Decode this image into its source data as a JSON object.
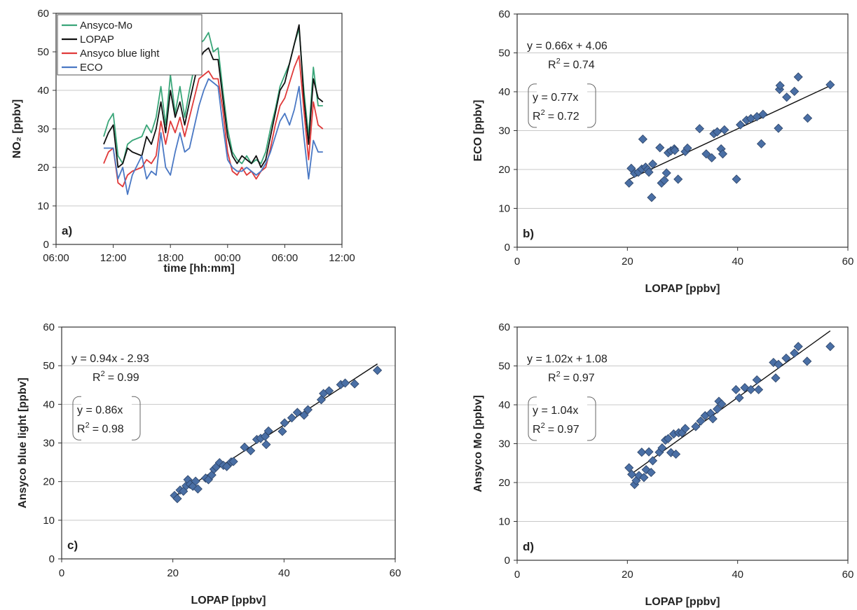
{
  "chart_data": [
    {
      "type": "line",
      "panel_label": "a)",
      "xlabel": "time [hh:mm]",
      "ylabel": "NO₂ [ppbv]",
      "x_ticks": [
        "06:00",
        "12:00",
        "18:00",
        "00:00",
        "06:00",
        "12:00"
      ],
      "xlim": [
        "06:00",
        "12:00 (next day)"
      ],
      "ylim": [
        0,
        60
      ],
      "y_ticks": [
        0,
        10,
        20,
        30,
        40,
        50,
        60
      ],
      "grid": "horizontal",
      "legend_position": "top-left",
      "x_hours": [
        11,
        11.5,
        12,
        12.5,
        13,
        13.5,
        14,
        15,
        15.5,
        16,
        16.5,
        17,
        17.5,
        18,
        18.5,
        19,
        19.5,
        20,
        21,
        21.5,
        22,
        22.5,
        23,
        23.5,
        24,
        24.5,
        25,
        25.5,
        26,
        26.5,
        27,
        27.5,
        28,
        28.5,
        29,
        29.5,
        30,
        30.5,
        31,
        31.5,
        32,
        32.5,
        33,
        33.5,
        34
      ],
      "series": [
        {
          "name": "Ansyco-Mo",
          "color": "#3aa679",
          "values": [
            28,
            32,
            34,
            23,
            21,
            26,
            27,
            28,
            31,
            29,
            33,
            41,
            31,
            44,
            34,
            41,
            33,
            40,
            52,
            53,
            55,
            50,
            51,
            40,
            30,
            24,
            22,
            21,
            23,
            21,
            22,
            21,
            24,
            30,
            35,
            41,
            44,
            47,
            52,
            56,
            40,
            28,
            46,
            36,
            36
          ]
        },
        {
          "name": "LOPAP",
          "color": "#111111",
          "values": [
            26,
            29,
            31,
            20,
            21,
            25,
            24,
            23,
            28,
            26,
            30,
            37,
            29,
            40,
            33,
            37,
            31,
            37,
            48,
            50,
            51,
            48,
            48,
            38,
            28,
            23,
            21,
            23,
            22,
            21,
            23,
            20,
            22,
            28,
            34,
            40,
            42,
            47,
            52,
            57,
            38,
            26,
            43,
            38,
            37
          ]
        },
        {
          "name": "Ansyco blue light",
          "color": "#e03a3a",
          "values": [
            21,
            24,
            25,
            16,
            15,
            18,
            19,
            20,
            22,
            21,
            23,
            32,
            26,
            32,
            29,
            33,
            28,
            33,
            43,
            44,
            45,
            43,
            43,
            35,
            24,
            19,
            18,
            20,
            18,
            19,
            17,
            19,
            20,
            25,
            31,
            36,
            38,
            42,
            46,
            49,
            35,
            22,
            37,
            31,
            30
          ]
        },
        {
          "name": "ECO",
          "color": "#4a78c4",
          "values": [
            25,
            25,
            25,
            17,
            20,
            13,
            18,
            23,
            17,
            19,
            18,
            29,
            20,
            18,
            24,
            29,
            24,
            25,
            36,
            40,
            43,
            42,
            41,
            31,
            22,
            20,
            19,
            19,
            20,
            19,
            18,
            19,
            21,
            24,
            28,
            32,
            34,
            31,
            35,
            41,
            28,
            17,
            27,
            24,
            24
          ]
        }
      ]
    },
    {
      "type": "scatter",
      "panel_label": "b)",
      "xlabel": "LOPAP [ppbv]",
      "ylabel": "ECO [ppbv]",
      "xlim": [
        0,
        60
      ],
      "ylim": [
        0,
        60
      ],
      "x_ticks": [
        0,
        20,
        40,
        60
      ],
      "y_ticks": [
        0,
        10,
        20,
        30,
        40,
        50,
        60
      ],
      "grid": "horizontal",
      "marker_color": "#4a6fa5",
      "regression": {
        "equation": "y = 0.66x + 4.06",
        "r2": "= 0.74",
        "slope": 0.66,
        "intercept": 4.06
      },
      "origin_fit": {
        "equation": "y = 0.77x",
        "r2": "= 0.72"
      },
      "points": [
        [
          20.3,
          16.5
        ],
        [
          20.7,
          20.3
        ],
        [
          21.3,
          19.0
        ],
        [
          22.0,
          19.3
        ],
        [
          22.6,
          20.1
        ],
        [
          22.8,
          27.8
        ],
        [
          23.3,
          20.6
        ],
        [
          23.7,
          20.0
        ],
        [
          23.9,
          19.3
        ],
        [
          24.4,
          12.8
        ],
        [
          24.6,
          21.4
        ],
        [
          25.9,
          25.6
        ],
        [
          26.2,
          16.5
        ],
        [
          26.7,
          17.2
        ],
        [
          27.1,
          19.1
        ],
        [
          27.4,
          24.3
        ],
        [
          27.9,
          24.8
        ],
        [
          28.5,
          25.3
        ],
        [
          28.6,
          24.9
        ],
        [
          29.2,
          17.5
        ],
        [
          30.5,
          24.6
        ],
        [
          30.9,
          25.5
        ],
        [
          33.1,
          30.5
        ],
        [
          34.3,
          24.0
        ],
        [
          35.3,
          23.0
        ],
        [
          35.7,
          29.2
        ],
        [
          36.3,
          29.7
        ],
        [
          37.0,
          25.3
        ],
        [
          37.3,
          24.0
        ],
        [
          37.6,
          30.2
        ],
        [
          39.8,
          17.5
        ],
        [
          40.5,
          31.5
        ],
        [
          41.6,
          32.7
        ],
        [
          42.4,
          33.1
        ],
        [
          43.5,
          33.6
        ],
        [
          44.3,
          26.6
        ],
        [
          44.6,
          34.2
        ],
        [
          47.4,
          30.6
        ],
        [
          47.6,
          40.6
        ],
        [
          47.7,
          41.6
        ],
        [
          48.9,
          38.6
        ],
        [
          50.3,
          40.1
        ],
        [
          51.0,
          43.8
        ],
        [
          52.7,
          33.2
        ],
        [
          56.8,
          41.8
        ]
      ]
    },
    {
      "type": "scatter",
      "panel_label": "c)",
      "xlabel": "LOPAP [ppbv]",
      "ylabel": "Ansyco blue light [ppbv]",
      "xlim": [
        0,
        60
      ],
      "ylim": [
        0,
        60
      ],
      "x_ticks": [
        0,
        20,
        40,
        60
      ],
      "y_ticks": [
        0,
        10,
        20,
        30,
        40,
        50,
        60
      ],
      "grid": "horizontal",
      "marker_color": "#4a6fa5",
      "regression": {
        "equation": "y = 0.94x - 2.93",
        "r2": "= 0.99",
        "slope": 0.94,
        "intercept": -2.93
      },
      "origin_fit": {
        "equation": "y = 0.86x",
        "r2": "= 0.98"
      },
      "points": [
        [
          20.3,
          16.4
        ],
        [
          20.8,
          15.6
        ],
        [
          21.3,
          17.8
        ],
        [
          21.9,
          17.5
        ],
        [
          22.4,
          18.9
        ],
        [
          22.7,
          20.5
        ],
        [
          23.1,
          19.3
        ],
        [
          23.6,
          18.8
        ],
        [
          24.1,
          20.1
        ],
        [
          24.5,
          18.1
        ],
        [
          25.9,
          20.9
        ],
        [
          26.4,
          20.5
        ],
        [
          27.0,
          21.7
        ],
        [
          27.4,
          23.2
        ],
        [
          27.8,
          23.8
        ],
        [
          28.4,
          24.9
        ],
        [
          29.1,
          24.2
        ],
        [
          29.7,
          23.9
        ],
        [
          30.5,
          25.1
        ],
        [
          30.9,
          25.2
        ],
        [
          32.9,
          28.9
        ],
        [
          34.0,
          28.0
        ],
        [
          35.1,
          30.9
        ],
        [
          35.8,
          31.2
        ],
        [
          36.6,
          31.7
        ],
        [
          36.8,
          29.6
        ],
        [
          37.2,
          33.1
        ],
        [
          39.7,
          33.0
        ],
        [
          40.1,
          35.2
        ],
        [
          41.4,
          36.5
        ],
        [
          42.4,
          37.9
        ],
        [
          43.6,
          37.2
        ],
        [
          44.3,
          38.6
        ],
        [
          46.7,
          41.2
        ],
        [
          47.1,
          42.8
        ],
        [
          48.1,
          43.5
        ],
        [
          50.2,
          45.1
        ],
        [
          51.0,
          45.5
        ],
        [
          52.7,
          45.3
        ],
        [
          56.8,
          48.8
        ]
      ]
    },
    {
      "type": "scatter",
      "panel_label": "d)",
      "xlabel": "LOPAP [ppbv]",
      "ylabel": "Ansyco Mo [ppbv]",
      "xlim": [
        0,
        60
      ],
      "ylim": [
        0,
        60
      ],
      "x_ticks": [
        0,
        20,
        40,
        60
      ],
      "y_ticks": [
        0,
        10,
        20,
        30,
        40,
        50,
        60
      ],
      "grid": "horizontal",
      "marker_color": "#4a6fa5",
      "regression": {
        "equation": "y = 1.02x + 1.08",
        "r2": "= 0.97",
        "slope": 1.02,
        "intercept": 1.08
      },
      "origin_fit": {
        "equation": "y = 1.04x",
        "r2": "= 0.97"
      },
      "points": [
        [
          20.3,
          23.8
        ],
        [
          20.8,
          22.1
        ],
        [
          21.3,
          19.5
        ],
        [
          21.6,
          20.5
        ],
        [
          22.1,
          21.8
        ],
        [
          22.6,
          27.8
        ],
        [
          23.0,
          21.3
        ],
        [
          23.4,
          23.3
        ],
        [
          23.9,
          27.9
        ],
        [
          24.3,
          22.6
        ],
        [
          24.6,
          25.6
        ],
        [
          25.8,
          27.8
        ],
        [
          26.3,
          28.9
        ],
        [
          26.9,
          30.9
        ],
        [
          27.4,
          31.3
        ],
        [
          27.9,
          27.7
        ],
        [
          28.4,
          32.5
        ],
        [
          28.8,
          27.3
        ],
        [
          29.3,
          32.8
        ],
        [
          29.9,
          32.8
        ],
        [
          30.5,
          33.9
        ],
        [
          32.4,
          34.4
        ],
        [
          33.3,
          35.8
        ],
        [
          34.1,
          37.2
        ],
        [
          35.1,
          37.8
        ],
        [
          35.5,
          36.4
        ],
        [
          36.3,
          38.9
        ],
        [
          36.6,
          40.9
        ],
        [
          37.1,
          40.2
        ],
        [
          39.7,
          43.9
        ],
        [
          40.3,
          41.8
        ],
        [
          41.3,
          44.4
        ],
        [
          42.4,
          43.9
        ],
        [
          43.5,
          46.4
        ],
        [
          43.8,
          43.9
        ],
        [
          46.5,
          50.9
        ],
        [
          46.9,
          46.9
        ],
        [
          47.4,
          50.4
        ],
        [
          48.8,
          52.0
        ],
        [
          50.3,
          53.3
        ],
        [
          51.0,
          55.0
        ],
        [
          52.6,
          51.2
        ],
        [
          56.8,
          55.0
        ]
      ]
    }
  ]
}
